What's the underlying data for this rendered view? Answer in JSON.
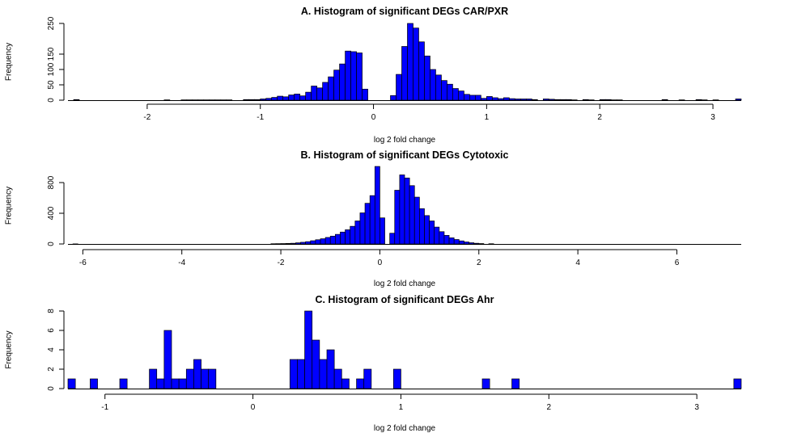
{
  "chart_data": [
    {
      "type": "bar",
      "title": "A. Histogram of significant DEGs CAR/PXR",
      "xlabel": "log 2 fold change",
      "ylabel": "Frequency",
      "xlim": [
        -2.7,
        3.25
      ],
      "ylim": [
        0,
        250
      ],
      "xticks": [
        -2,
        -1,
        0,
        1,
        2,
        3
      ],
      "yticks": [
        0,
        50,
        100,
        150,
        250
      ],
      "bin_width": 0.05,
      "bar_color": "#0000ff",
      "bins": [
        [
          -2.65,
          2
        ],
        [
          -1.85,
          1
        ],
        [
          -1.7,
          1
        ],
        [
          -1.65,
          1
        ],
        [
          -1.6,
          1
        ],
        [
          -1.55,
          1
        ],
        [
          -1.5,
          1
        ],
        [
          -1.45,
          1
        ],
        [
          -1.4,
          1
        ],
        [
          -1.35,
          1
        ],
        [
          -1.3,
          1
        ],
        [
          -1.15,
          2
        ],
        [
          -1.1,
          2
        ],
        [
          -1.05,
          2
        ],
        [
          -1.0,
          4
        ],
        [
          -0.95,
          6
        ],
        [
          -0.9,
          9
        ],
        [
          -0.85,
          13
        ],
        [
          -0.8,
          11
        ],
        [
          -0.75,
          17
        ],
        [
          -0.7,
          20
        ],
        [
          -0.65,
          14
        ],
        [
          -0.6,
          26
        ],
        [
          -0.55,
          46
        ],
        [
          -0.5,
          40
        ],
        [
          -0.45,
          58
        ],
        [
          -0.4,
          76
        ],
        [
          -0.35,
          98
        ],
        [
          -0.3,
          118
        ],
        [
          -0.25,
          160
        ],
        [
          -0.2,
          158
        ],
        [
          -0.15,
          154
        ],
        [
          -0.1,
          36
        ],
        [
          0.15,
          15
        ],
        [
          0.2,
          84
        ],
        [
          0.25,
          175
        ],
        [
          0.3,
          250
        ],
        [
          0.35,
          235
        ],
        [
          0.4,
          190
        ],
        [
          0.45,
          144
        ],
        [
          0.5,
          100
        ],
        [
          0.55,
          82
        ],
        [
          0.6,
          64
        ],
        [
          0.65,
          52
        ],
        [
          0.7,
          38
        ],
        [
          0.75,
          30
        ],
        [
          0.8,
          19
        ],
        [
          0.85,
          16
        ],
        [
          0.9,
          16
        ],
        [
          0.95,
          6
        ],
        [
          1.0,
          12
        ],
        [
          1.05,
          8
        ],
        [
          1.1,
          5
        ],
        [
          1.15,
          8
        ],
        [
          1.2,
          5
        ],
        [
          1.25,
          4
        ],
        [
          1.3,
          4
        ],
        [
          1.35,
          4
        ],
        [
          1.4,
          2
        ],
        [
          1.5,
          4
        ],
        [
          1.55,
          3
        ],
        [
          1.6,
          2
        ],
        [
          1.65,
          2
        ],
        [
          1.7,
          2
        ],
        [
          1.75,
          1
        ],
        [
          1.85,
          2
        ],
        [
          1.9,
          1
        ],
        [
          2.0,
          2
        ],
        [
          2.05,
          2
        ],
        [
          2.1,
          1
        ],
        [
          2.15,
          1
        ],
        [
          2.55,
          2
        ],
        [
          2.7,
          1
        ],
        [
          2.85,
          2
        ],
        [
          2.9,
          1
        ],
        [
          3.0,
          1
        ],
        [
          3.2,
          4
        ]
      ]
    },
    {
      "type": "bar",
      "title": "B. Histogram of significant DEGs Cytotoxic",
      "xlabel": "log 2 fold change",
      "ylabel": "Frequency",
      "xlim": [
        -6.3,
        7.3
      ],
      "ylim": [
        0,
        1000
      ],
      "xticks": [
        -6,
        -4,
        -2,
        0,
        2,
        4,
        6
      ],
      "yticks": [
        0,
        400,
        800
      ],
      "bin_width": 0.1,
      "bar_color": "#0000ff",
      "bins": [
        [
          -6.2,
          1
        ],
        [
          -2.2,
          3
        ],
        [
          -2.1,
          4
        ],
        [
          -2.0,
          5
        ],
        [
          -1.9,
          7
        ],
        [
          -1.8,
          9
        ],
        [
          -1.7,
          15
        ],
        [
          -1.6,
          22
        ],
        [
          -1.5,
          30
        ],
        [
          -1.4,
          42
        ],
        [
          -1.3,
          55
        ],
        [
          -1.2,
          68
        ],
        [
          -1.1,
          85
        ],
        [
          -1.0,
          102
        ],
        [
          -0.9,
          125
        ],
        [
          -0.8,
          155
        ],
        [
          -0.7,
          185
        ],
        [
          -0.6,
          230
        ],
        [
          -0.5,
          300
        ],
        [
          -0.4,
          405
        ],
        [
          -0.3,
          530
        ],
        [
          -0.2,
          630
        ],
        [
          -0.1,
          1010
        ],
        [
          0.0,
          340
        ],
        [
          0.2,
          140
        ],
        [
          0.3,
          700
        ],
        [
          0.4,
          900
        ],
        [
          0.5,
          860
        ],
        [
          0.6,
          760
        ],
        [
          0.7,
          610
        ],
        [
          0.8,
          460
        ],
        [
          0.9,
          370
        ],
        [
          1.0,
          300
        ],
        [
          1.1,
          220
        ],
        [
          1.2,
          160
        ],
        [
          1.3,
          112
        ],
        [
          1.4,
          80
        ],
        [
          1.5,
          58
        ],
        [
          1.6,
          40
        ],
        [
          1.7,
          26
        ],
        [
          1.8,
          16
        ],
        [
          1.9,
          9
        ],
        [
          2.0,
          5
        ],
        [
          2.2,
          3
        ]
      ]
    },
    {
      "type": "bar",
      "title": "C. Histogram of significant DEGs Ahr",
      "xlabel": "log 2 fold change",
      "ylabel": "Frequency",
      "xlim": [
        -1.25,
        3.3
      ],
      "ylim": [
        0,
        8
      ],
      "xticks": [
        -1,
        0,
        1,
        2,
        3
      ],
      "yticks": [
        0,
        2,
        4,
        6,
        8
      ],
      "bin_width": 0.05,
      "bar_color": "#0000ff",
      "bins": [
        [
          -1.25,
          1
        ],
        [
          -1.1,
          1
        ],
        [
          -0.9,
          1
        ],
        [
          -0.7,
          2
        ],
        [
          -0.65,
          1
        ],
        [
          -0.6,
          6
        ],
        [
          -0.55,
          1
        ],
        [
          -0.5,
          1
        ],
        [
          -0.45,
          2
        ],
        [
          -0.4,
          3
        ],
        [
          -0.35,
          2
        ],
        [
          -0.3,
          2
        ],
        [
          0.25,
          3
        ],
        [
          0.3,
          3
        ],
        [
          0.35,
          8
        ],
        [
          0.4,
          5
        ],
        [
          0.45,
          3
        ],
        [
          0.5,
          4
        ],
        [
          0.55,
          2
        ],
        [
          0.6,
          1
        ],
        [
          0.7,
          1
        ],
        [
          0.75,
          2
        ],
        [
          0.95,
          2
        ],
        [
          1.55,
          1
        ],
        [
          1.75,
          1
        ],
        [
          3.25,
          1
        ]
      ]
    }
  ]
}
